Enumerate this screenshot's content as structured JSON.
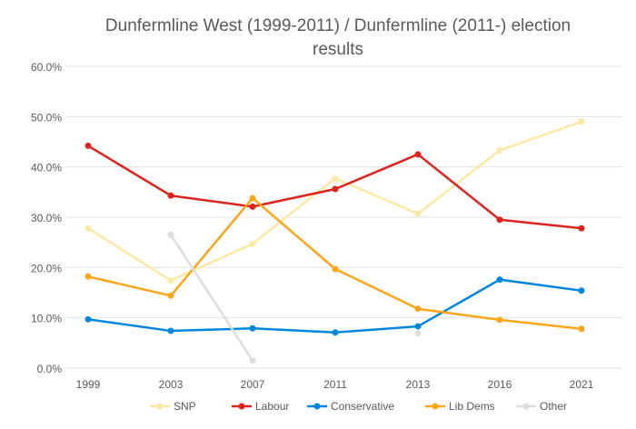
{
  "chart_data": {
    "type": "line",
    "title_line1": "Dunfermline West (1999-2011) / Dunfermline (2011-) election",
    "title_line2": "results",
    "categories": [
      "1999",
      "2003",
      "2007",
      "2011",
      "2013",
      "2016",
      "2021"
    ],
    "ylim": [
      0,
      60
    ],
    "yticks": [
      "0.0%",
      "10.0%",
      "20.0%",
      "30.0%",
      "40.0%",
      "50.0%",
      "60.0%"
    ],
    "grid": true,
    "legend_position": "bottom",
    "series": [
      {
        "name": "SNP",
        "color": "#fbeaa6",
        "values": [
          27.8,
          17.4,
          24.7,
          37.7,
          30.7,
          43.3,
          49.0
        ]
      },
      {
        "name": "Labour",
        "color": "#dc241f",
        "values": [
          44.2,
          34.3,
          32.1,
          35.6,
          42.5,
          29.5,
          27.8
        ]
      },
      {
        "name": "Conservative",
        "color": "#0087dc",
        "values": [
          9.7,
          7.4,
          7.9,
          7.1,
          8.3,
          17.6,
          15.4
        ]
      },
      {
        "name": "Lib Dems",
        "color": "#faa61a",
        "values": [
          18.2,
          14.4,
          33.8,
          19.7,
          11.8,
          9.6,
          7.8
        ]
      },
      {
        "name": "Other",
        "color": "#dddddd",
        "values": [
          null,
          26.5,
          1.5,
          null,
          6.9,
          null,
          null
        ]
      }
    ]
  }
}
